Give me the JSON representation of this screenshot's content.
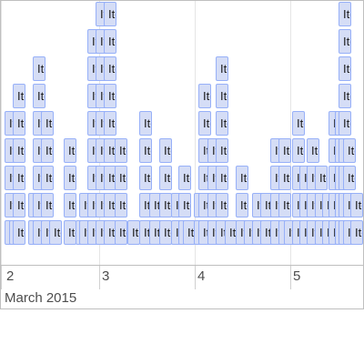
{
  "axis": {
    "minor_labels": [
      "2",
      "3",
      "4",
      "5"
    ],
    "major_label": "March 2015"
  },
  "items": {
    "label": "Item",
    "columns": [
      {
        "count": 5
      },
      {
        "count": 1
      },
      {
        "count": 6
      },
      {
        "count": 2
      },
      {
        "count": 7
      },
      {
        "count": 5
      },
      {
        "count": 1
      },
      {
        "count": 4
      },
      {
        "count": 1
      },
      {
        "count": 2
      },
      {
        "count": 8
      },
      {
        "count": 9
      },
      {
        "count": 9
      },
      {
        "count": 4
      },
      {
        "count": 1
      },
      {
        "count": 5
      },
      {
        "count": 2
      },
      {
        "count": 4
      },
      {
        "count": 2
      },
      {
        "count": 3
      },
      {
        "count": 1
      },
      {
        "count": 2
      },
      {
        "count": 6
      },
      {
        "count": 4
      },
      {
        "count": 7
      },
      {
        "count": 1
      },
      {
        "count": 3
      },
      {
        "count": 1
      },
      {
        "count": 2
      },
      {
        "count": 2
      },
      {
        "count": 4
      },
      {
        "count": 4
      },
      {
        "count": 1
      },
      {
        "count": 5
      },
      {
        "count": 3
      },
      {
        "count": 4
      },
      {
        "count": 3
      },
      {
        "count": 2
      },
      {
        "count": 5
      },
      {
        "count": 5
      },
      {
        "count": 9
      },
      {
        "count": 4
      },
      {
        "count": 2
      }
    ]
  }
}
